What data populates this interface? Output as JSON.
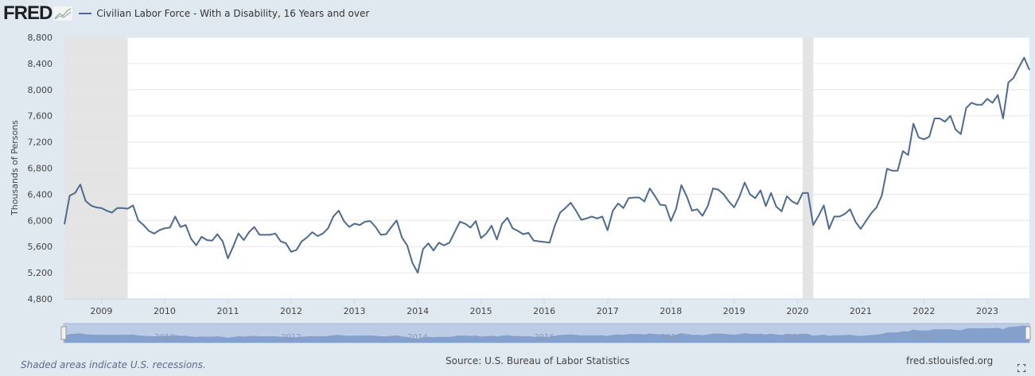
{
  "header": {
    "logo": "FRED",
    "series_title": "Civilian Labor Force - With a Disability, 16 Years and over"
  },
  "footer": {
    "recession_note": "Shaded areas indicate U.S. recessions.",
    "source": "Source: U.S. Bureau of Labor Statistics",
    "site": "fred.stlouisfed.org"
  },
  "colors": {
    "line": "#4c6a92",
    "recession": "#e4e4e4",
    "background": "#e1e9f0",
    "navigator": "#7d9bc9"
  },
  "icons": {
    "fullscreen": "fullscreen-icon",
    "logo_chart": "chart-icon"
  },
  "chart_data": {
    "type": "line",
    "title": "Civilian Labor Force - With a Disability, 16 Years and over",
    "xlabel": "",
    "ylabel": "Thousands of Persons",
    "ylim": [
      4800,
      8800
    ],
    "yticks": [
      "4,800",
      "5,200",
      "5,600",
      "6,000",
      "6,400",
      "6,800",
      "7,200",
      "7,600",
      "8,000",
      "8,400",
      "8,800"
    ],
    "ytick_values": [
      4800,
      5200,
      5600,
      6000,
      6400,
      6800,
      7200,
      7600,
      8000,
      8400,
      8800
    ],
    "xticks": [
      "2009",
      "2010",
      "2011",
      "2012",
      "2013",
      "2014",
      "2015",
      "2016",
      "2017",
      "2018",
      "2019",
      "2020",
      "2021",
      "2022",
      "2023"
    ],
    "navigator_ticks": [
      "2010",
      "2012",
      "2014",
      "2016",
      "2018",
      "2020",
      "2022"
    ],
    "start": "2008-06",
    "frequency": "monthly",
    "grid": true,
    "recessions": [
      [
        "2008-06",
        "2009-06"
      ],
      [
        "2020-02",
        "2020-04"
      ]
    ],
    "series": [
      {
        "name": "Civilian Labor Force - With a Disability, 16 Years and over",
        "values": [
          5940,
          6380,
          6420,
          6550,
          6300,
          6230,
          6200,
          6190,
          6150,
          6120,
          6190,
          6190,
          6180,
          6230,
          6000,
          5930,
          5840,
          5800,
          5850,
          5880,
          5890,
          6060,
          5900,
          5930,
          5720,
          5620,
          5750,
          5700,
          5690,
          5790,
          5680,
          5420,
          5600,
          5800,
          5700,
          5820,
          5900,
          5780,
          5780,
          5780,
          5800,
          5680,
          5650,
          5520,
          5550,
          5680,
          5740,
          5820,
          5760,
          5800,
          5880,
          6060,
          6150,
          5990,
          5900,
          5950,
          5930,
          5980,
          5990,
          5900,
          5780,
          5790,
          5900,
          6000,
          5740,
          5620,
          5350,
          5200,
          5560,
          5650,
          5540,
          5660,
          5620,
          5660,
          5820,
          5980,
          5950,
          5890,
          5990,
          5730,
          5800,
          5920,
          5710,
          5950,
          6040,
          5880,
          5840,
          5790,
          5810,
          5690,
          5680,
          5670,
          5660,
          5920,
          6120,
          6190,
          6270,
          6150,
          6010,
          6030,
          6060,
          6030,
          6060,
          5850,
          6150,
          6260,
          6190,
          6340,
          6350,
          6350,
          6290,
          6490,
          6370,
          6240,
          6230,
          5990,
          6180,
          6540,
          6370,
          6150,
          6170,
          6070,
          6220,
          6490,
          6470,
          6400,
          6290,
          6200,
          6360,
          6580,
          6400,
          6340,
          6460,
          6220,
          6420,
          6210,
          6140,
          6370,
          6290,
          6250,
          6420,
          6420,
          5930,
          6070,
          6230,
          5870,
          6060,
          6060,
          6100,
          6170,
          5980,
          5870,
          5990,
          6110,
          6200,
          6380,
          6790,
          6760,
          6760,
          7060,
          7000,
          7480,
          7270,
          7240,
          7280,
          7560,
          7560,
          7510,
          7600,
          7390,
          7320,
          7720,
          7800,
          7770,
          7770,
          7860,
          7800,
          7920,
          7560,
          8110,
          8180,
          8340,
          8490,
          8300
        ]
      }
    ]
  }
}
